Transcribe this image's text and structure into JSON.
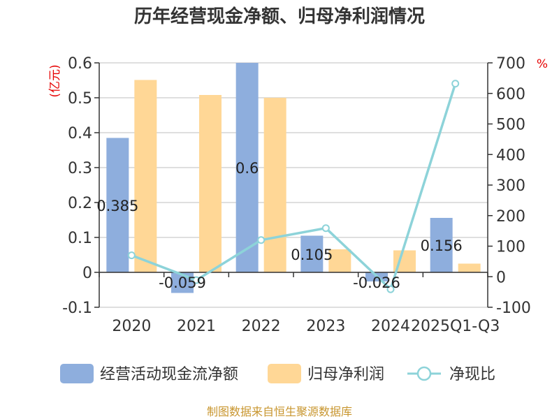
{
  "chart_data": {
    "type": "bar",
    "title": "历年经营现金净额、归母净利润情况",
    "categories": [
      "2020",
      "2021",
      "2022",
      "2023",
      "2024",
      "2025Q1-Q3"
    ],
    "left_axis": {
      "unit": "(亿元)",
      "ylim": [
        -0.1,
        0.6
      ],
      "ticks": [
        "-0.1",
        "0",
        "0.1",
        "0.2",
        "0.3",
        "0.4",
        "0.5",
        "0.6"
      ]
    },
    "right_axis": {
      "unit": "%",
      "ylim": [
        -100,
        700
      ],
      "ticks": [
        "-100",
        "0",
        "100",
        "200",
        "300",
        "400",
        "500",
        "600",
        "700"
      ]
    },
    "series": [
      {
        "name": "经营活动现金流净额",
        "kind": "bar",
        "axis": "left",
        "color": "#8eaedd",
        "values": [
          0.385,
          -0.059,
          0.6,
          0.105,
          -0.026,
          0.156
        ],
        "labels": [
          "0.385",
          "-0.059",
          "0.6",
          "0.105",
          "-0.026",
          "0.156"
        ]
      },
      {
        "name": "归母净利润",
        "kind": "bar",
        "axis": "left",
        "color": "#ffd796",
        "values": [
          0.551,
          0.508,
          0.5,
          0.066,
          0.063,
          0.025
        ]
      },
      {
        "name": "净现比",
        "kind": "line",
        "axis": "right",
        "color": "#8dd3d9",
        "values": [
          70,
          -11,
          120,
          159,
          -41,
          632
        ]
      }
    ],
    "grid": true,
    "legend_position": "bottom"
  },
  "source": "制图数据来自恒生聚源数据库"
}
